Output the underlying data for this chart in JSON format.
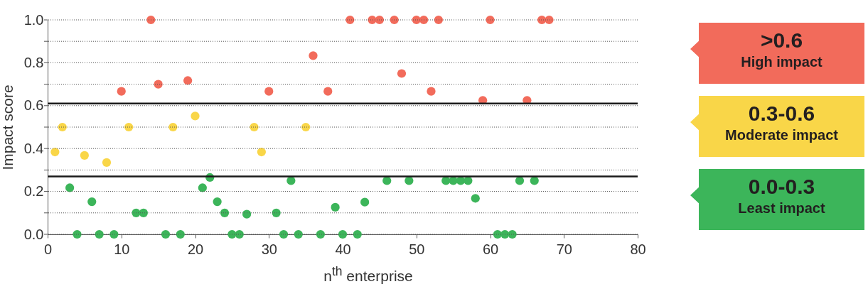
{
  "chart_data": {
    "type": "scatter",
    "xlabel": "n$^{th}$ enterprise",
    "ylabel": "Impact score",
    "xlim": [
      0,
      80
    ],
    "xticks": [
      0,
      10,
      20,
      30,
      40,
      50,
      60,
      70,
      80
    ],
    "ylim": [
      0,
      1.0
    ],
    "yticks": [
      {
        "value": 0,
        "label": "0.0"
      },
      {
        "value": 0.1,
        "label": null
      },
      0.2,
      {
        "value": 0.3,
        "label": null
      },
      0.4,
      {
        "value": 0.5,
        "label": null
      },
      0.6,
      {
        "value": 0.7,
        "label": null
      },
      0.8,
      {
        "value": 0.9,
        "label": null
      },
      {
        "value": 1,
        "label": "1.0"
      }
    ],
    "grid": "y",
    "legend": "right",
    "marker": "circle",
    "ref_lines": [
      {
        "axis": "y",
        "value": 0.61,
        "color": "#1a1a1a"
      },
      {
        "axis": "y",
        "value": 0.27,
        "color": "#1a1a1a"
      }
    ],
    "series": [
      {
        "name": ">0.6 High impact",
        "color": "#f26b5b",
        "x": [
          10,
          14,
          15,
          19,
          30,
          36,
          38,
          41,
          44,
          45,
          47,
          48,
          50,
          51,
          52,
          53,
          59,
          60,
          65,
          67,
          68
        ],
        "values": [
          0.667,
          1,
          0.7,
          0.717,
          0.667,
          0.833,
          0.667,
          1,
          1,
          1,
          1,
          0.75,
          1,
          1,
          0.667,
          1,
          0.625,
          1,
          0.625,
          1,
          1
        ]
      },
      {
        "name": "0.3-0.6 Moderate impact",
        "color": "#f9d648",
        "x": [
          1,
          2,
          5,
          8,
          11,
          17,
          20,
          28,
          29,
          35
        ],
        "values": [
          0.384,
          0.5,
          0.368,
          0.335,
          0.5,
          0.5,
          0.552,
          0.5,
          0.384,
          0.5
        ]
      },
      {
        "name": "0.0-0.3 Least impact",
        "color": "#3cb55a",
        "x": [
          3,
          4,
          6,
          7,
          9,
          12,
          13,
          16,
          18,
          21,
          22,
          23,
          24,
          25,
          26,
          27,
          31,
          32,
          33,
          34,
          37,
          39,
          40,
          42,
          43,
          46,
          49,
          54,
          55,
          56,
          57,
          58,
          61,
          62,
          63,
          64,
          66
        ],
        "values": [
          0.217,
          0,
          0.152,
          0,
          0,
          0.1,
          0.1,
          0,
          0,
          0.217,
          0.265,
          0.152,
          0.1,
          0,
          0,
          0.094,
          0.1,
          0,
          0.25,
          0,
          0,
          0.126,
          0,
          0,
          0.15,
          0.25,
          0.25,
          0.25,
          0.25,
          0.25,
          0.25,
          0.168,
          0,
          0,
          0,
          0.25,
          0.25
        ]
      }
    ]
  }
}
